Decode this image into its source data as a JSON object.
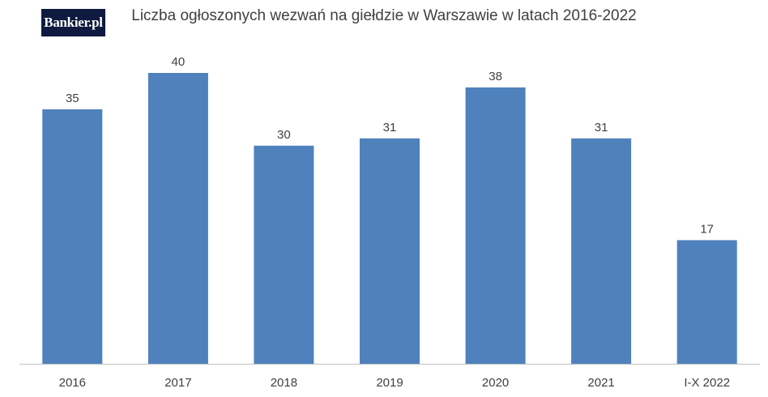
{
  "logo": {
    "text": "Bankier.pl"
  },
  "chart_data": {
    "type": "bar",
    "title": "Liczba ogłoszonych wezwań na giełdzie w Warszawie w latach 2016-2022",
    "categories": [
      "2016",
      "2017",
      "2018",
      "2019",
      "2020",
      "2021",
      "I-X 2022"
    ],
    "values": [
      35,
      40,
      30,
      31,
      38,
      31,
      17
    ],
    "data_labels": [
      "35",
      "40",
      "30",
      "31",
      "38",
      "31",
      "17"
    ],
    "xlabel": "",
    "ylabel": "",
    "ylim": [
      0,
      40
    ],
    "grid": false,
    "colors": {
      "bar": "#4f81bd",
      "axis": "#bfbfbf",
      "text": "#404040"
    }
  }
}
